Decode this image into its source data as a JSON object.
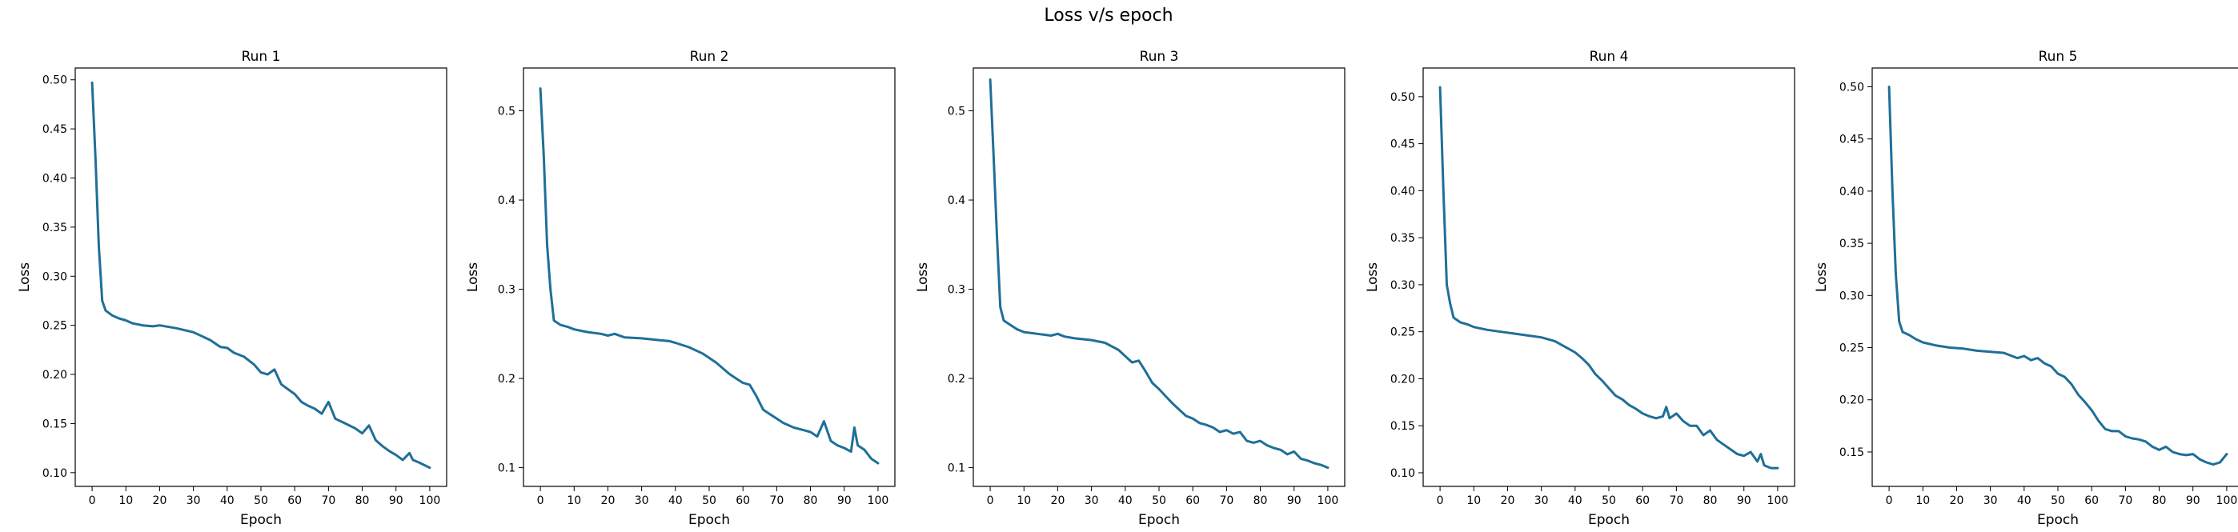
{
  "suptitle": "Loss v/s epoch",
  "colors": {
    "line": "#1f6f98"
  },
  "chart_data": [
    {
      "type": "line",
      "title": "Run 1",
      "xlabel": "Epoch",
      "ylabel": "Loss",
      "xlim": [
        -5,
        105
      ],
      "ylim": [
        0.086,
        0.512
      ],
      "xticks": [
        0,
        10,
        20,
        30,
        40,
        50,
        60,
        70,
        80,
        90,
        100
      ],
      "yticks": [
        0.1,
        0.15,
        0.2,
        0.25,
        0.3,
        0.35,
        0.4,
        0.45,
        0.5
      ],
      "ytick_labels": [
        "0.10",
        "0.15",
        "0.20",
        "0.25",
        "0.30",
        "0.35",
        "0.40",
        "0.45",
        "0.50"
      ],
      "series": [
        {
          "points": [
            [
              0,
              0.497
            ],
            [
              1,
              0.42
            ],
            [
              2,
              0.33
            ],
            [
              3,
              0.275
            ],
            [
              4,
              0.265
            ],
            [
              6,
              0.26
            ],
            [
              8,
              0.257
            ],
            [
              10,
              0.255
            ],
            [
              12,
              0.252
            ],
            [
              15,
              0.25
            ],
            [
              18,
              0.249
            ],
            [
              20,
              0.25
            ],
            [
              25,
              0.247
            ],
            [
              30,
              0.243
            ],
            [
              35,
              0.235
            ],
            [
              38,
              0.228
            ],
            [
              40,
              0.227
            ],
            [
              42,
              0.222
            ],
            [
              45,
              0.218
            ],
            [
              48,
              0.21
            ],
            [
              50,
              0.202
            ],
            [
              52,
              0.2
            ],
            [
              54,
              0.205
            ],
            [
              56,
              0.19
            ],
            [
              58,
              0.185
            ],
            [
              60,
              0.18
            ],
            [
              62,
              0.172
            ],
            [
              64,
              0.168
            ],
            [
              66,
              0.165
            ],
            [
              68,
              0.16
            ],
            [
              70,
              0.172
            ],
            [
              72,
              0.155
            ],
            [
              75,
              0.15
            ],
            [
              78,
              0.145
            ],
            [
              80,
              0.14
            ],
            [
              82,
              0.148
            ],
            [
              84,
              0.133
            ],
            [
              86,
              0.127
            ],
            [
              88,
              0.122
            ],
            [
              90,
              0.118
            ],
            [
              92,
              0.113
            ],
            [
              94,
              0.12
            ],
            [
              95,
              0.113
            ],
            [
              97,
              0.11
            ],
            [
              100,
              0.105
            ]
          ]
        }
      ]
    },
    {
      "type": "line",
      "title": "Run 2",
      "xlabel": "Epoch",
      "ylabel": "Loss",
      "xlim": [
        -5,
        105
      ],
      "ylim": [
        0.079,
        0.548
      ],
      "xticks": [
        0,
        10,
        20,
        30,
        40,
        50,
        60,
        70,
        80,
        90,
        100
      ],
      "yticks": [
        0.1,
        0.2,
        0.3,
        0.4,
        0.5
      ],
      "ytick_labels": [
        "0.1",
        "0.2",
        "0.3",
        "0.4",
        "0.5"
      ],
      "series": [
        {
          "points": [
            [
              0,
              0.525
            ],
            [
              1,
              0.45
            ],
            [
              2,
              0.35
            ],
            [
              3,
              0.3
            ],
            [
              4,
              0.265
            ],
            [
              6,
              0.26
            ],
            [
              8,
              0.258
            ],
            [
              10,
              0.255
            ],
            [
              14,
              0.252
            ],
            [
              18,
              0.25
            ],
            [
              20,
              0.248
            ],
            [
              22,
              0.25
            ],
            [
              25,
              0.246
            ],
            [
              30,
              0.245
            ],
            [
              35,
              0.243
            ],
            [
              38,
              0.242
            ],
            [
              40,
              0.24
            ],
            [
              44,
              0.235
            ],
            [
              48,
              0.228
            ],
            [
              52,
              0.218
            ],
            [
              56,
              0.205
            ],
            [
              58,
              0.2
            ],
            [
              60,
              0.195
            ],
            [
              62,
              0.193
            ],
            [
              64,
              0.18
            ],
            [
              66,
              0.165
            ],
            [
              68,
              0.16
            ],
            [
              70,
              0.155
            ],
            [
              72,
              0.15
            ],
            [
              75,
              0.145
            ],
            [
              78,
              0.142
            ],
            [
              80,
              0.14
            ],
            [
              82,
              0.135
            ],
            [
              84,
              0.152
            ],
            [
              86,
              0.13
            ],
            [
              88,
              0.125
            ],
            [
              90,
              0.122
            ],
            [
              92,
              0.118
            ],
            [
              93,
              0.145
            ],
            [
              94,
              0.125
            ],
            [
              96,
              0.12
            ],
            [
              98,
              0.11
            ],
            [
              100,
              0.105
            ]
          ]
        }
      ]
    },
    {
      "type": "line",
      "title": "Run 3",
      "xlabel": "Epoch",
      "ylabel": "Loss",
      "xlim": [
        -5,
        105
      ],
      "ylim": [
        0.079,
        0.548
      ],
      "xticks": [
        0,
        10,
        20,
        30,
        40,
        50,
        60,
        70,
        80,
        90,
        100
      ],
      "yticks": [
        0.1,
        0.2,
        0.3,
        0.4,
        0.5
      ],
      "ytick_labels": [
        "0.1",
        "0.2",
        "0.3",
        "0.4",
        "0.5"
      ],
      "series": [
        {
          "points": [
            [
              0,
              0.535
            ],
            [
              1,
              0.45
            ],
            [
              2,
              0.36
            ],
            [
              3,
              0.28
            ],
            [
              4,
              0.265
            ],
            [
              6,
              0.26
            ],
            [
              8,
              0.255
            ],
            [
              10,
              0.252
            ],
            [
              14,
              0.25
            ],
            [
              18,
              0.248
            ],
            [
              20,
              0.25
            ],
            [
              22,
              0.247
            ],
            [
              25,
              0.245
            ],
            [
              30,
              0.243
            ],
            [
              34,
              0.24
            ],
            [
              38,
              0.232
            ],
            [
              40,
              0.225
            ],
            [
              42,
              0.218
            ],
            [
              44,
              0.22
            ],
            [
              46,
              0.208
            ],
            [
              48,
              0.195
            ],
            [
              50,
              0.188
            ],
            [
              52,
              0.18
            ],
            [
              54,
              0.172
            ],
            [
              56,
              0.165
            ],
            [
              58,
              0.158
            ],
            [
              60,
              0.155
            ],
            [
              62,
              0.15
            ],
            [
              64,
              0.148
            ],
            [
              66,
              0.145
            ],
            [
              68,
              0.14
            ],
            [
              70,
              0.142
            ],
            [
              72,
              0.138
            ],
            [
              74,
              0.14
            ],
            [
              76,
              0.13
            ],
            [
              78,
              0.128
            ],
            [
              80,
              0.13
            ],
            [
              82,
              0.125
            ],
            [
              84,
              0.122
            ],
            [
              86,
              0.12
            ],
            [
              88,
              0.115
            ],
            [
              90,
              0.118
            ],
            [
              92,
              0.11
            ],
            [
              94,
              0.108
            ],
            [
              96,
              0.105
            ],
            [
              98,
              0.103
            ],
            [
              100,
              0.1
            ]
          ]
        }
      ]
    },
    {
      "type": "line",
      "title": "Run 4",
      "xlabel": "Epoch",
      "ylabel": "Loss",
      "xlim": [
        -5,
        105
      ],
      "ylim": [
        0.0855,
        0.5305
      ],
      "xticks": [
        0,
        10,
        20,
        30,
        40,
        50,
        60,
        70,
        80,
        90,
        100
      ],
      "yticks": [
        0.1,
        0.15,
        0.2,
        0.25,
        0.3,
        0.35,
        0.4,
        0.45,
        0.5
      ],
      "ytick_labels": [
        "0.10",
        "0.15",
        "0.20",
        "0.25",
        "0.30",
        "0.35",
        "0.40",
        "0.45",
        "0.50"
      ],
      "series": [
        {
          "points": [
            [
              0,
              0.51
            ],
            [
              1,
              0.4
            ],
            [
              2,
              0.3
            ],
            [
              3,
              0.28
            ],
            [
              4,
              0.265
            ],
            [
              6,
              0.26
            ],
            [
              8,
              0.258
            ],
            [
              10,
              0.255
            ],
            [
              14,
              0.252
            ],
            [
              18,
              0.25
            ],
            [
              22,
              0.248
            ],
            [
              26,
              0.246
            ],
            [
              30,
              0.244
            ],
            [
              34,
              0.24
            ],
            [
              38,
              0.232
            ],
            [
              40,
              0.228
            ],
            [
              42,
              0.222
            ],
            [
              44,
              0.215
            ],
            [
              46,
              0.205
            ],
            [
              48,
              0.198
            ],
            [
              50,
              0.19
            ],
            [
              52,
              0.182
            ],
            [
              54,
              0.178
            ],
            [
              56,
              0.172
            ],
            [
              58,
              0.168
            ],
            [
              60,
              0.163
            ],
            [
              62,
              0.16
            ],
            [
              64,
              0.158
            ],
            [
              66,
              0.16
            ],
            [
              67,
              0.17
            ],
            [
              68,
              0.158
            ],
            [
              70,
              0.163
            ],
            [
              72,
              0.155
            ],
            [
              74,
              0.15
            ],
            [
              76,
              0.15
            ],
            [
              78,
              0.14
            ],
            [
              80,
              0.145
            ],
            [
              82,
              0.135
            ],
            [
              84,
              0.13
            ],
            [
              86,
              0.125
            ],
            [
              88,
              0.12
            ],
            [
              90,
              0.118
            ],
            [
              92,
              0.122
            ],
            [
              94,
              0.112
            ],
            [
              95,
              0.12
            ],
            [
              96,
              0.108
            ],
            [
              98,
              0.105
            ],
            [
              100,
              0.105
            ]
          ]
        }
      ]
    },
    {
      "type": "line",
      "title": "Run 5",
      "xlabel": "Epoch",
      "ylabel": "Loss",
      "xlim": [
        -5,
        105
      ],
      "ylim": [
        0.117,
        0.518
      ],
      "xticks": [
        0,
        10,
        20,
        30,
        40,
        50,
        60,
        70,
        80,
        90,
        100
      ],
      "yticks": [
        0.15,
        0.2,
        0.25,
        0.3,
        0.35,
        0.4,
        0.45,
        0.5
      ],
      "ytick_labels": [
        "0.15",
        "0.20",
        "0.25",
        "0.30",
        "0.35",
        "0.40",
        "0.45",
        "0.50"
      ],
      "series": [
        {
          "points": [
            [
              0,
              0.5
            ],
            [
              1,
              0.4
            ],
            [
              2,
              0.32
            ],
            [
              3,
              0.275
            ],
            [
              4,
              0.265
            ],
            [
              6,
              0.262
            ],
            [
              8,
              0.258
            ],
            [
              10,
              0.255
            ],
            [
              14,
              0.252
            ],
            [
              18,
              0.25
            ],
            [
              22,
              0.249
            ],
            [
              26,
              0.247
            ],
            [
              30,
              0.246
            ],
            [
              34,
              0.245
            ],
            [
              38,
              0.24
            ],
            [
              40,
              0.242
            ],
            [
              42,
              0.238
            ],
            [
              44,
              0.24
            ],
            [
              46,
              0.235
            ],
            [
              48,
              0.232
            ],
            [
              50,
              0.225
            ],
            [
              52,
              0.222
            ],
            [
              54,
              0.215
            ],
            [
              56,
              0.205
            ],
            [
              58,
              0.198
            ],
            [
              60,
              0.19
            ],
            [
              62,
              0.18
            ],
            [
              64,
              0.172
            ],
            [
              66,
              0.17
            ],
            [
              68,
              0.17
            ],
            [
              70,
              0.165
            ],
            [
              72,
              0.163
            ],
            [
              74,
              0.162
            ],
            [
              76,
              0.16
            ],
            [
              78,
              0.155
            ],
            [
              80,
              0.152
            ],
            [
              82,
              0.155
            ],
            [
              84,
              0.15
            ],
            [
              86,
              0.148
            ],
            [
              88,
              0.147
            ],
            [
              90,
              0.148
            ],
            [
              92,
              0.143
            ],
            [
              94,
              0.14
            ],
            [
              96,
              0.138
            ],
            [
              98,
              0.14
            ],
            [
              100,
              0.148
            ]
          ]
        }
      ]
    }
  ]
}
